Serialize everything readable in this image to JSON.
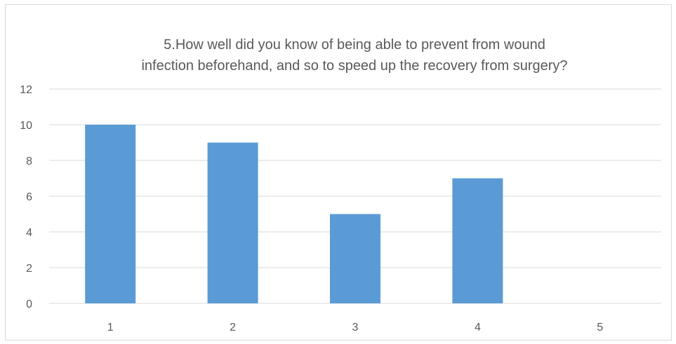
{
  "chart_data": {
    "type": "bar",
    "title_lines": [
      "5.How well did you know of being able to prevent from wound",
      "infection beforehand, and so to speed up the recovery from surgery?"
    ],
    "categories": [
      "1",
      "2",
      "3",
      "4",
      "5"
    ],
    "values": [
      10,
      9,
      5,
      7,
      0
    ],
    "ylim": [
      0,
      12
    ],
    "yticks": [
      "0",
      "2",
      "4",
      "6",
      "8",
      "10",
      "12"
    ],
    "xlabel": "",
    "ylabel": "",
    "grid": true,
    "legend": "none",
    "bar_color": "#5b9bd5",
    "grid_color": "#d9d9d9",
    "text_color": "#595959"
  }
}
